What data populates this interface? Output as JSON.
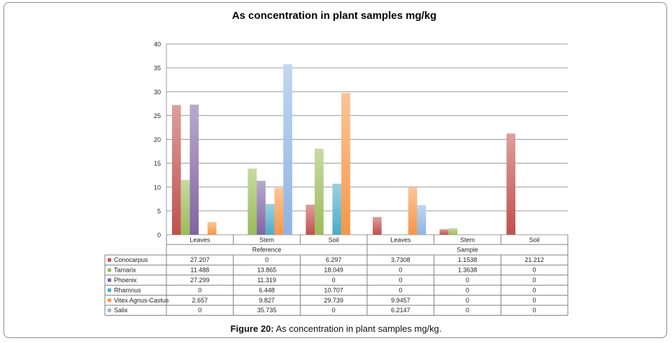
{
  "chart_data": {
    "type": "bar",
    "title": "As concentration in plant samples mg/kg",
    "categories": [
      "Leaves",
      "Stem",
      "Soil",
      "Leaves",
      "Stem",
      "Soil"
    ],
    "groups": [
      {
        "label": "Reference",
        "span": [
          0,
          2
        ]
      },
      {
        "label": "Sample",
        "span": [
          3,
          5
        ]
      }
    ],
    "ylim": [
      0,
      40
    ],
    "yticks": [
      "0",
      "5",
      "10",
      "15",
      "20",
      "25",
      "30",
      "35",
      "40"
    ],
    "grid": true,
    "legend": "table-left",
    "series": [
      {
        "name": "Conocarpus",
        "color": "#c0504d",
        "values": [
          27.207,
          0,
          6.297,
          3.7308,
          1.1538,
          21.212
        ],
        "labels": [
          "27.207",
          "0",
          "6.297",
          "3.7308",
          "1.1538",
          "21.212"
        ]
      },
      {
        "name": "Tamarix",
        "color": "#9bbb59",
        "values": [
          11.488,
          13.865,
          18.049,
          0,
          1.3638,
          0
        ],
        "labels": [
          "11.488",
          "13.865",
          "18.049",
          "0",
          "1.3638",
          "0"
        ]
      },
      {
        "name": "Phoenix",
        "color": "#8064a2",
        "values": [
          27.299,
          11.319,
          0,
          0,
          0,
          0
        ],
        "labels": [
          "27.299",
          "11.319",
          "0",
          "0",
          "0",
          "0"
        ]
      },
      {
        "name": "Rhamnus",
        "color": "#4bacc6",
        "values": [
          0,
          6.448,
          10.707,
          0,
          0,
          0
        ],
        "labels": [
          "0",
          "6.448",
          "10.707",
          "0",
          "0",
          "0"
        ]
      },
      {
        "name": "Vitex Agnus-Castus",
        "color": "#f79646",
        "values": [
          2.657,
          9.827,
          29.739,
          9.9457,
          0,
          0
        ],
        "labels": [
          "2.657",
          "9.827",
          "29.739",
          "9.9457",
          "0",
          "0"
        ]
      },
      {
        "name": "Salix",
        "color": "#8eb4e3",
        "values": [
          0,
          35.735,
          0,
          6.2147,
          0,
          0
        ],
        "labels": [
          "0",
          "35.735",
          "0",
          "6.2147",
          "0",
          "0"
        ]
      }
    ]
  },
  "caption": {
    "label": "Figure 20:",
    "text": " As concentration in plant samples mg/kg."
  }
}
